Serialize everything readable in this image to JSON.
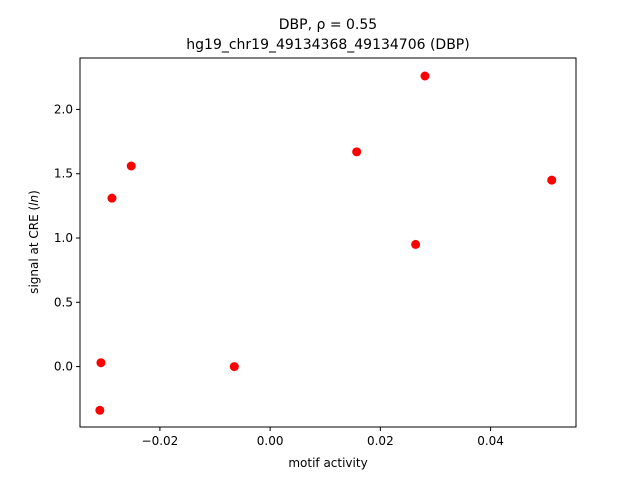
{
  "chart_data": {
    "type": "scatter",
    "title": "DBP, ρ = 0.55",
    "subtitle": "hg19_chr19_49134368_49134706 (DBP)",
    "xlabel": "motif activity",
    "ylabel": "signal at CRE (ln)",
    "xlim": [
      -0.0345,
      0.0555
    ],
    "ylim": [
      -0.47,
      2.4
    ],
    "xticks": [
      -0.02,
      0.0,
      0.02,
      0.04
    ],
    "xtick_labels": [
      "−0.02",
      "0.00",
      "0.02",
      "0.04"
    ],
    "yticks": [
      0.0,
      0.5,
      1.0,
      1.5,
      2.0
    ],
    "ytick_labels": [
      "0.0",
      "0.5",
      "1.0",
      "1.5",
      "2.0"
    ],
    "grid": false,
    "marker_color": "#ff0000",
    "points": [
      {
        "x": -0.0309,
        "y": -0.34
      },
      {
        "x": -0.0307,
        "y": 0.03
      },
      {
        "x": -0.0287,
        "y": 1.31
      },
      {
        "x": -0.0252,
        "y": 1.56
      },
      {
        "x": -0.0065,
        "y": 0.0
      },
      {
        "x": 0.0157,
        "y": 1.67
      },
      {
        "x": 0.0264,
        "y": 0.95
      },
      {
        "x": 0.0281,
        "y": 2.26
      },
      {
        "x": 0.0511,
        "y": 1.45
      }
    ]
  }
}
